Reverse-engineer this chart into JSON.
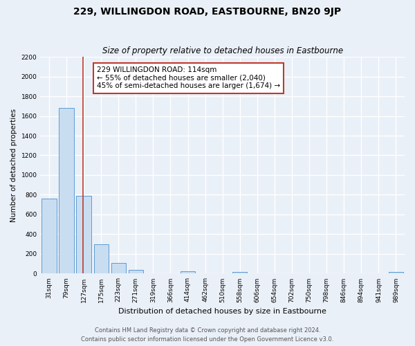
{
  "title": "229, WILLINGDON ROAD, EASTBOURNE, BN20 9JP",
  "subtitle": "Size of property relative to detached houses in Eastbourne",
  "xlabel": "Distribution of detached houses by size in Eastbourne",
  "ylabel": "Number of detached properties",
  "bins": [
    "31sqm",
    "79sqm",
    "127sqm",
    "175sqm",
    "223sqm",
    "271sqm",
    "319sqm",
    "366sqm",
    "414sqm",
    "462sqm",
    "510sqm",
    "558sqm",
    "606sqm",
    "654sqm",
    "702sqm",
    "750sqm",
    "798sqm",
    "846sqm",
    "894sqm",
    "941sqm",
    "989sqm"
  ],
  "bar_values": [
    760,
    1680,
    790,
    295,
    110,
    38,
    0,
    0,
    22,
    0,
    0,
    18,
    0,
    0,
    0,
    0,
    0,
    0,
    0,
    0,
    18
  ],
  "bar_color": "#c9ddf0",
  "bar_edge_color": "#5b9bd5",
  "ylim": [
    0,
    2200
  ],
  "yticks": [
    0,
    200,
    400,
    600,
    800,
    1000,
    1200,
    1400,
    1600,
    1800,
    2000,
    2200
  ],
  "property_line_bin_index": 1.95,
  "annotation_title": "229 WILLINGDON ROAD: 114sqm",
  "annotation_line1": "← 55% of detached houses are smaller (2,040)",
  "annotation_line2": "45% of semi-detached houses are larger (1,674) →",
  "red_line_color": "#c0392b",
  "annotation_box_color": "#ffffff",
  "annotation_box_edge_color": "#c0392b",
  "footer_line1": "Contains HM Land Registry data © Crown copyright and database right 2024.",
  "footer_line2": "Contains public sector information licensed under the Open Government Licence v3.0.",
  "background_color": "#eaf0f8",
  "grid_color": "#ffffff",
  "title_fontsize": 10,
  "subtitle_fontsize": 8.5,
  "xlabel_fontsize": 8,
  "ylabel_fontsize": 7.5,
  "tick_fontsize": 6.5,
  "annotation_fontsize": 7.5,
  "footer_fontsize": 6
}
